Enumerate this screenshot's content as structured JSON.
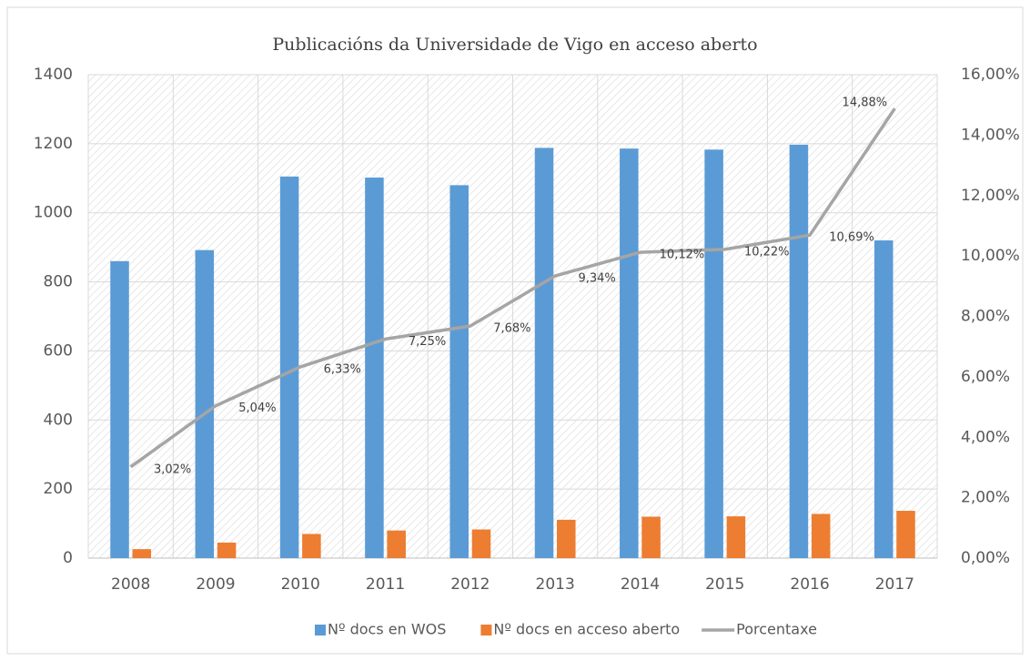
{
  "chart_data": {
    "type": "bar+line",
    "title": "Publicacións da Universidade de Vigo en acceso aberto",
    "categories": [
      "2008",
      "2009",
      "2010",
      "2011",
      "2012",
      "2013",
      "2014",
      "2015",
      "2016",
      "2017"
    ],
    "series": [
      {
        "name": "Nº docs en WOS",
        "type": "bar",
        "color": "#5b9bd5",
        "values": [
          860,
          892,
          1105,
          1102,
          1080,
          1188,
          1186,
          1183,
          1197,
          920
        ]
      },
      {
        "name": "Nº docs en acceso aberto",
        "type": "bar",
        "color": "#ed7d31",
        "values": [
          26,
          45,
          70,
          80,
          83,
          111,
          120,
          121,
          128,
          137
        ]
      },
      {
        "name": "Porcentaxe",
        "type": "line",
        "axis": "y2",
        "color": "#a5a5a5",
        "values": [
          3.02,
          5.04,
          6.33,
          7.25,
          7.68,
          9.34,
          10.12,
          10.22,
          10.69,
          14.88
        ],
        "value_labels": [
          "3,02%",
          "5,04%",
          "6,33%",
          "7,25%",
          "7,68%",
          "9,34%",
          "10,12%",
          "10,22%",
          "10,69%",
          "14,88%"
        ]
      }
    ],
    "ylim": [
      0,
      1400
    ],
    "yticks": [
      0,
      200,
      400,
      600,
      800,
      1000,
      1200,
      1400
    ],
    "y2lim": [
      0,
      16
    ],
    "y2ticks": [
      {
        "value": 0,
        "label": "0,00%"
      },
      {
        "value": 2,
        "label": "2,00%"
      },
      {
        "value": 4,
        "label": "4,00%"
      },
      {
        "value": 6,
        "label": "6,00%"
      },
      {
        "value": 8,
        "label": "8,00%"
      },
      {
        "value": 10,
        "label": "10,00%"
      },
      {
        "value": 12,
        "label": "12,00%"
      },
      {
        "value": 14,
        "label": "14,00%"
      },
      {
        "value": 16,
        "label": "16,00%"
      }
    ],
    "grid": true,
    "legend": "bottom"
  }
}
